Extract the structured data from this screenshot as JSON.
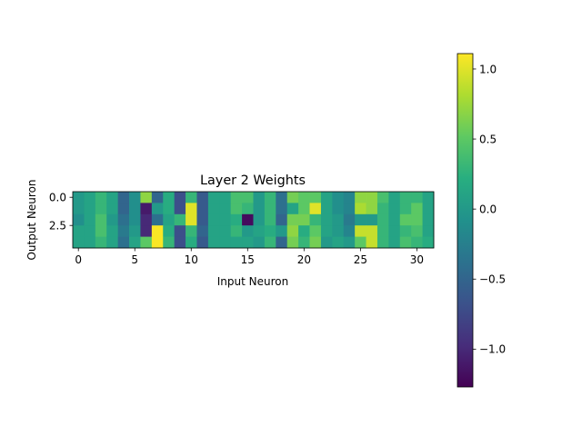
{
  "chart_data": {
    "type": "heatmap",
    "title": "Layer 2 Weights",
    "xlabel": "Input Neuron",
    "ylabel": "Output Neuron",
    "x_ticks": [
      0,
      5,
      10,
      15,
      20,
      25,
      30
    ],
    "x_tick_labels": [
      "0",
      "5",
      "10",
      "15",
      "20",
      "25",
      "30"
    ],
    "y_ticks": [
      0.0,
      2.5
    ],
    "y_tick_labels": [
      "0.0",
      "2.5"
    ],
    "n_rows": 5,
    "n_cols": 32,
    "values": [
      [
        0.0,
        0.1,
        0.3,
        0.1,
        -0.5,
        -0.1,
        0.7,
        -0.5,
        0.2,
        -0.7,
        0.3,
        -0.6,
        0.1,
        0.1,
        0.4,
        0.4,
        0.0,
        0.3,
        -0.4,
        0.6,
        0.5,
        0.5,
        0.1,
        -0.1,
        -0.2,
        0.7,
        0.7,
        0.4,
        0.1,
        0.3,
        0.3,
        0.1
      ],
      [
        0.0,
        0.1,
        0.3,
        0.1,
        -0.5,
        -0.1,
        -1.1,
        0.0,
        0.2,
        -0.7,
        1.0,
        -0.6,
        0.1,
        0.1,
        0.4,
        0.3,
        0.0,
        0.3,
        -0.4,
        0.1,
        0.5,
        1.0,
        0.1,
        -0.1,
        -0.2,
        0.8,
        0.7,
        0.3,
        0.1,
        0.3,
        0.5,
        0.1
      ],
      [
        -0.1,
        0.1,
        0.4,
        0.0,
        -0.4,
        -0.1,
        -1.0,
        -0.4,
        0.1,
        0.3,
        1.0,
        -0.6,
        0.1,
        0.1,
        0.2,
        -1.2,
        0.0,
        0.3,
        -0.5,
        0.6,
        0.6,
        0.3,
        0.1,
        0.0,
        -0.3,
        0.0,
        0.0,
        0.3,
        0.1,
        0.5,
        0.5,
        0.1
      ],
      [
        0.1,
        0.1,
        0.4,
        0.1,
        -0.3,
        0.0,
        -1.0,
        1.1,
        0.2,
        -0.7,
        0.3,
        -0.5,
        0.1,
        0.1,
        0.3,
        0.0,
        0.1,
        0.2,
        0.0,
        0.7,
        0.2,
        0.5,
        0.1,
        0.0,
        -0.2,
        0.9,
        0.9,
        0.3,
        0.1,
        0.3,
        0.4,
        0.1
      ],
      [
        0.1,
        0.1,
        0.3,
        0.1,
        -0.4,
        0.1,
        0.5,
        1.1,
        0.3,
        -0.7,
        0.2,
        -0.6,
        0.1,
        0.1,
        0.1,
        0.1,
        0.0,
        0.3,
        -0.5,
        0.6,
        0.3,
        0.6,
        0.0,
        0.1,
        0.0,
        0.5,
        0.9,
        0.3,
        0.1,
        0.4,
        0.3,
        0.2
      ]
    ],
    "colormap": "viridis",
    "vmin": -1.27,
    "vmax": 1.11,
    "colorbar_ticks": [
      1.0,
      0.5,
      0.0,
      -0.5,
      -1.0
    ],
    "colorbar_tick_labels": [
      "1.0",
      "0.5",
      "0.0",
      "−0.5",
      "−1.0"
    ],
    "grid": false
  }
}
